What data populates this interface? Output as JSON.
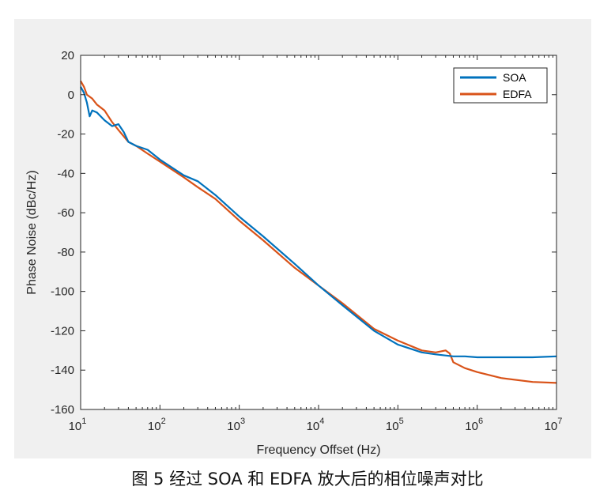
{
  "caption": "图 5 经过 SOA 和 EDFA 放大后的相位噪声对比",
  "chart_data": {
    "type": "line",
    "title": "",
    "xlabel": "Frequency Offset (Hz)",
    "ylabel": "Phase Noise (dBc/Hz)",
    "x_scale": "log",
    "xlim": [
      10,
      10000000
    ],
    "ylim": [
      -160,
      20
    ],
    "x_ticks": [
      10,
      100,
      1000,
      10000,
      100000,
      1000000,
      10000000
    ],
    "x_tick_labels": [
      {
        "base": "10",
        "exp": "1"
      },
      {
        "base": "10",
        "exp": "2"
      },
      {
        "base": "10",
        "exp": "3"
      },
      {
        "base": "10",
        "exp": "4"
      },
      {
        "base": "10",
        "exp": "5"
      },
      {
        "base": "10",
        "exp": "6"
      },
      {
        "base": "10",
        "exp": "7"
      }
    ],
    "y_ticks": [
      20,
      0,
      -20,
      -40,
      -60,
      -80,
      -100,
      -120,
      -140,
      -160
    ],
    "y_tick_labels": [
      "20",
      "0",
      "-20",
      "-40",
      "-60",
      "-80",
      "-100",
      "-120",
      "-140",
      "-160"
    ],
    "grid": false,
    "legend_position": "top-right",
    "series": [
      {
        "name": "SOA",
        "color": "#0072BD",
        "x": [
          10,
          11,
          12,
          13,
          14,
          16,
          20,
          25,
          30,
          35,
          40,
          50,
          70,
          100,
          200,
          300,
          500,
          1000,
          2000,
          5000,
          10000,
          20000,
          50000,
          100000,
          200000,
          300000,
          500000,
          700000,
          1000000,
          2000000,
          5000000,
          10000000
        ],
        "y": [
          4,
          1,
          -4,
          -11,
          -8,
          -9,
          -13,
          -16,
          -15,
          -19,
          -24,
          -26,
          -28,
          -33,
          -41,
          -44,
          -51,
          -62,
          -72,
          -86,
          -97,
          -107,
          -120,
          -127,
          -131,
          -132,
          -133,
          -133,
          -133.5,
          -133.5,
          -133.5,
          -133
        ]
      },
      {
        "name": "EDFA",
        "color": "#D95319",
        "x": [
          10,
          11,
          12,
          14,
          16,
          20,
          25,
          30,
          40,
          50,
          70,
          100,
          200,
          300,
          500,
          1000,
          2000,
          5000,
          10000,
          20000,
          50000,
          100000,
          200000,
          300000,
          400000,
          450000,
          500000,
          700000,
          1000000,
          2000000,
          5000000,
          10000000
        ],
        "y": [
          7,
          4,
          0,
          -2,
          -5,
          -8,
          -14,
          -18,
          -24,
          -26,
          -30,
          -34,
          -42,
          -47,
          -53,
          -64,
          -74,
          -88,
          -97,
          -106,
          -119,
          -125,
          -130,
          -131,
          -130,
          -131.5,
          -136,
          -139,
          -141,
          -144,
          -146,
          -146.5
        ]
      }
    ]
  }
}
